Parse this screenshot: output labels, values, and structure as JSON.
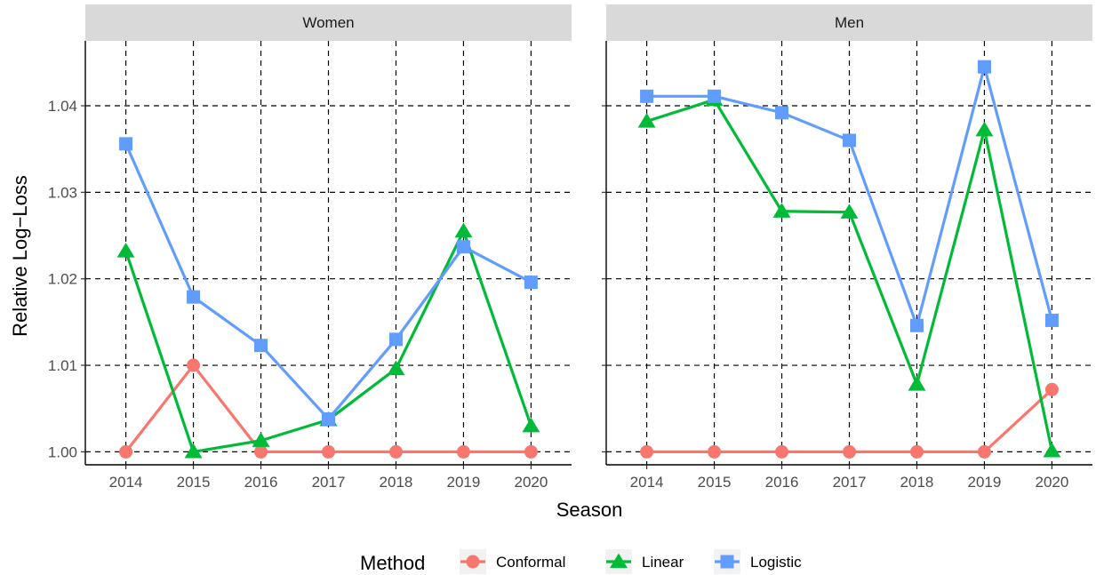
{
  "chart_data": {
    "type": "line",
    "xlabel": "Season",
    "ylabel": "Relative Log−Loss",
    "x": [
      2014,
      2015,
      2016,
      2017,
      2018,
      2019,
      2020
    ],
    "x_tick_labels": [
      "2014",
      "2015",
      "2016",
      "2017",
      "2018",
      "2019",
      "2020"
    ],
    "ylim": [
      0.9985,
      1.0475
    ],
    "y_ticks": [
      1.0,
      1.01,
      1.02,
      1.03,
      1.04
    ],
    "y_tick_labels": [
      "1.00",
      "1.01",
      "1.02",
      "1.03",
      "1.04"
    ],
    "grid": true,
    "legend": {
      "title": "Method",
      "position": "bottom",
      "entries": [
        "Conformal",
        "Linear",
        "Logistic"
      ]
    },
    "series_styles": [
      {
        "name": "Conformal",
        "color": "#F8766D",
        "marker": "circle"
      },
      {
        "name": "Linear",
        "color": "#00BA38",
        "marker": "triangle"
      },
      {
        "name": "Logistic",
        "color": "#619CFF",
        "marker": "square"
      }
    ],
    "panels": [
      {
        "strip": "Women",
        "series": [
          {
            "name": "Conformal",
            "values": [
              1.0,
              1.01,
              1.0,
              1.0,
              1.0,
              1.0,
              1.0
            ]
          },
          {
            "name": "Linear",
            "values": [
              1.0232,
              1.0,
              1.0013,
              1.0037,
              1.0096,
              1.0255,
              1.003
            ]
          },
          {
            "name": "Logistic",
            "values": [
              1.0356,
              1.0179,
              1.0123,
              1.0038,
              1.013,
              1.0237,
              1.0196
            ]
          }
        ]
      },
      {
        "strip": "Men",
        "series": [
          {
            "name": "Conformal",
            "values": [
              1.0,
              1.0,
              1.0,
              1.0,
              1.0,
              1.0,
              1.0072
            ]
          },
          {
            "name": "Linear",
            "values": [
              1.0382,
              1.0407,
              1.0278,
              1.0277,
              1.0078,
              1.0372,
              1.0001
            ]
          },
          {
            "name": "Logistic",
            "values": [
              1.0411,
              1.0411,
              1.0392,
              1.036,
              1.0146,
              1.0445,
              1.0152
            ]
          }
        ]
      }
    ]
  }
}
